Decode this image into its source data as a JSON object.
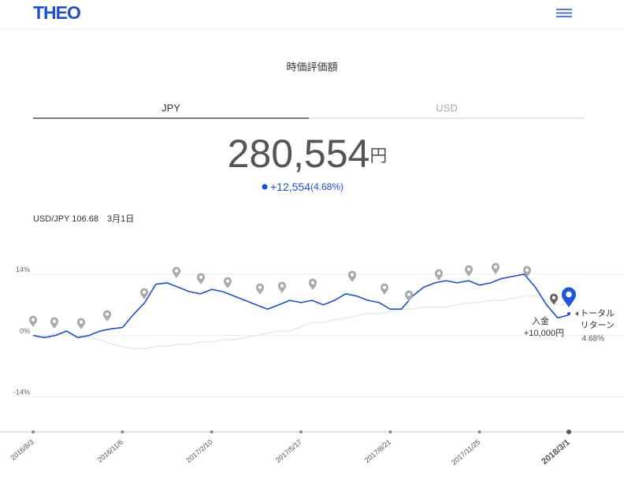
{
  "header": {
    "logo": "THEO"
  },
  "title": "時価評価額",
  "tabs": [
    "JPY",
    "USD"
  ],
  "amount": {
    "value": "280,554",
    "unit": "円",
    "change": "+12,554",
    "change_pct": "(4.68%)"
  },
  "fx_note": "USD/JPY 106.68　3月1日",
  "chart_data": {
    "type": "line",
    "categories": [
      "2016/8/3",
      null,
      null,
      null,
      null,
      null,
      null,
      null,
      "2016/11/6",
      null,
      null,
      null,
      null,
      null,
      null,
      null,
      "2017/2/10",
      null,
      null,
      null,
      null,
      null,
      null,
      null,
      "2017/5/17",
      null,
      null,
      null,
      null,
      null,
      null,
      null,
      "2017/8/21",
      null,
      null,
      null,
      null,
      null,
      null,
      null,
      "2017/11/25",
      null,
      null,
      null,
      null,
      null,
      null,
      null,
      "2018/3/1"
    ],
    "series": [
      {
        "color": "#e8e8e8",
        "values": [
          0,
          0,
          0.5,
          0,
          0,
          -0.5,
          -1,
          -2,
          -2.5,
          -3,
          -3,
          -2.5,
          -2.5,
          -2,
          -2,
          -1.5,
          -1.5,
          -1,
          -1,
          -0.5,
          0,
          0.5,
          1,
          1,
          2,
          3,
          3,
          3.5,
          4,
          4.5,
          5,
          5,
          5.5,
          6,
          6,
          6.5,
          6.5,
          6.5,
          7,
          7.5,
          7.5,
          8,
          8,
          8.5,
          9,
          9,
          8,
          7,
          7
        ]
      },
      {
        "color": "#1a4fd6",
        "values": [
          0,
          -0.5,
          0,
          1,
          -0.5,
          0,
          1,
          1.5,
          1.8,
          4.8,
          7.5,
          11.7,
          12,
          11,
          10,
          9.5,
          10.5,
          10,
          9,
          8,
          7,
          6,
          7,
          8,
          7.5,
          8,
          7,
          8,
          9.5,
          9,
          8,
          7.5,
          6,
          6,
          9,
          11,
          12,
          12.5,
          12,
          12.5,
          11.5,
          12,
          13,
          13.5,
          14,
          11,
          7,
          4,
          4.68
        ]
      }
    ],
    "ylim": [
      -21.5,
      19
    ],
    "yticks": [
      {
        "value": 14,
        "label": "14%"
      },
      {
        "value": 0,
        "label": "0%"
      },
      {
        "value": -14,
        "label": "-14%"
      }
    ],
    "grid": true,
    "annotations": [
      "入金",
      "+10,000円",
      "トータル",
      "リターン",
      "4.68%"
    ]
  }
}
